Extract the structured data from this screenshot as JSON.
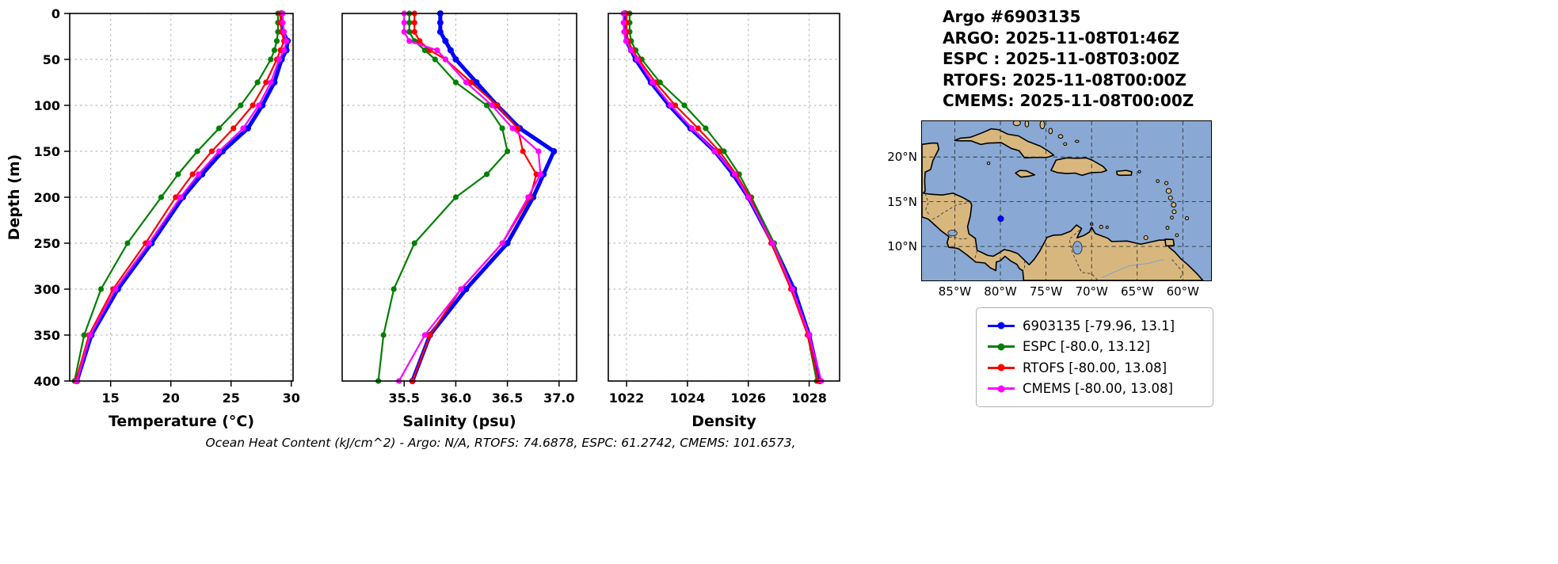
{
  "header": {
    "title": "Argo #6903135",
    "lines": [
      "ARGO: 2025-11-08T01:46Z",
      "ESPC : 2025-11-08T03:00Z",
      "RTOFS: 2025-11-08T00:00Z",
      "CMEMS: 2025-11-08T00:00Z"
    ]
  },
  "caption": "Ocean Heat Content (kJ/cm^2) - Argo: N/A,  RTOFS: 74.6878,  ESPC: 61.2742,  CMEMS: 101.6573,",
  "colors": {
    "argo": "#0000ff",
    "espc": "#008000",
    "rtofs": "#ff0000",
    "cmems": "#ff00ff",
    "grid": "#bbbbbb",
    "ocean": "#89a9d4",
    "land": "#d8b77e"
  },
  "legend": {
    "items": [
      {
        "key": "argo",
        "label": "6903135 [-79.96, 13.1]",
        "color": "#0000ff"
      },
      {
        "key": "espc",
        "label": "ESPC [-80.0, 13.12]",
        "color": "#008000"
      },
      {
        "key": "rtofs",
        "label": "RTOFS [-80.00, 13.08]",
        "color": "#ff0000"
      },
      {
        "key": "cmems",
        "label": "CMEMS [-80.00, 13.08]",
        "color": "#ff00ff"
      }
    ]
  },
  "map": {
    "extent": {
      "lon_min": -88.6,
      "lon_max": -56.9,
      "lat_min": 6.2,
      "lat_max": 24.0
    },
    "xticks": [
      {
        "v": -85,
        "label": "85°W"
      },
      {
        "v": -80,
        "label": "80°W"
      },
      {
        "v": -75,
        "label": "75°W"
      },
      {
        "v": -70,
        "label": "70°W"
      },
      {
        "v": -65,
        "label": "65°W"
      },
      {
        "v": -60,
        "label": "60°W"
      }
    ],
    "yticks": [
      {
        "v": 20,
        "label": "20°N"
      },
      {
        "v": 15,
        "label": "15°N"
      },
      {
        "v": 10,
        "label": "10°N"
      }
    ],
    "float_marker": {
      "lon": -79.96,
      "lat": 13.1
    }
  },
  "chart_data": {
    "type": "line",
    "ylabel": "Depth (m)",
    "ylim": [
      0,
      400
    ],
    "yticks": [
      {
        "v": 0,
        "label": "0"
      },
      {
        "v": 50,
        "label": "50"
      },
      {
        "v": 100,
        "label": "100"
      },
      {
        "v": 150,
        "label": "150"
      },
      {
        "v": 200,
        "label": "200"
      },
      {
        "v": 250,
        "label": "250"
      },
      {
        "v": 300,
        "label": "300"
      },
      {
        "v": 350,
        "label": "350"
      },
      {
        "v": 400,
        "label": "400"
      }
    ],
    "depths": [
      0,
      10,
      20,
      30,
      40,
      50,
      75,
      100,
      125,
      150,
      175,
      200,
      250,
      300,
      350,
      400
    ],
    "draw_order": [
      "argo",
      "espc",
      "rtofs",
      "cmems"
    ],
    "series_meta": [
      {
        "key": "argo",
        "name": "6903135",
        "line_width": 5,
        "marker_radius": 4
      },
      {
        "key": "espc",
        "name": "ESPC",
        "line_width": 2.2,
        "marker_radius": 3.6
      },
      {
        "key": "rtofs",
        "name": "RTOFS",
        "line_width": 2.2,
        "marker_radius": 3.6
      },
      {
        "key": "cmems",
        "name": "CMEMS",
        "line_width": 2.2,
        "marker_radius": 3.6
      }
    ],
    "panels": [
      {
        "xlabel": "Temperature (°C)",
        "xlim": [
          11.6,
          30.15
        ],
        "xticks": [
          {
            "v": 15,
            "label": "15"
          },
          {
            "v": 20,
            "label": "20"
          },
          {
            "v": 25,
            "label": "25"
          },
          {
            "v": 30,
            "label": "30"
          }
        ],
        "series": {
          "argo": [
            29.2,
            29.2,
            29.3,
            29.7,
            29.6,
            29.2,
            28.6,
            27.6,
            26.4,
            24.3,
            22.6,
            21.0,
            18.4,
            15.6,
            13.4,
            12.2
          ],
          "espc": [
            28.9,
            28.9,
            28.9,
            28.8,
            28.6,
            28.3,
            27.2,
            25.8,
            24.0,
            22.2,
            20.6,
            19.2,
            16.4,
            14.2,
            12.8,
            12.0
          ],
          "rtofs": [
            29.1,
            29.1,
            29.2,
            29.4,
            29.1,
            28.8,
            27.9,
            26.8,
            25.2,
            23.4,
            21.8,
            20.4,
            17.9,
            15.2,
            13.2,
            12.1
          ],
          "cmems": [
            29.3,
            29.3,
            29.4,
            29.6,
            29.4,
            29.0,
            28.3,
            27.3,
            26.0,
            24.0,
            22.3,
            20.8,
            18.2,
            15.4,
            13.3,
            12.2
          ]
        }
      },
      {
        "xlabel": "Salinity (psu)",
        "xlim": [
          34.9,
          37.17
        ],
        "xticks": [
          {
            "v": 35.5,
            "label": "35.5"
          },
          {
            "v": 36.0,
            "label": "36.0"
          },
          {
            "v": 36.5,
            "label": "36.5"
          },
          {
            "v": 37.0,
            "label": "37.0"
          }
        ],
        "series": {
          "argo": [
            35.85,
            35.85,
            35.85,
            35.9,
            35.95,
            36.0,
            36.2,
            36.4,
            36.62,
            36.95,
            36.85,
            36.75,
            36.5,
            36.1,
            35.75,
            35.58
          ],
          "espc": [
            35.55,
            35.55,
            35.55,
            35.6,
            35.7,
            35.8,
            36.0,
            36.3,
            36.45,
            36.5,
            36.3,
            36.0,
            35.6,
            35.4,
            35.3,
            35.25
          ],
          "rtofs": [
            35.6,
            35.6,
            35.6,
            35.65,
            35.75,
            35.9,
            36.15,
            36.4,
            36.6,
            36.65,
            36.78,
            36.72,
            36.45,
            36.05,
            35.75,
            35.58
          ],
          "cmems": [
            35.5,
            35.5,
            35.5,
            35.55,
            35.82,
            35.9,
            36.1,
            36.35,
            36.55,
            36.8,
            36.82,
            36.7,
            36.45,
            36.05,
            35.7,
            35.45
          ]
        }
      },
      {
        "xlabel": "Density",
        "xlim": [
          1021.4,
          1029.0
        ],
        "xticks": [
          {
            "v": 1022,
            "label": "1022"
          },
          {
            "v": 1024,
            "label": "1024"
          },
          {
            "v": 1026,
            "label": "1026"
          },
          {
            "v": 1028,
            "label": "1028"
          }
        ],
        "series": {
          "argo": [
            1021.95,
            1021.95,
            1021.97,
            1022.0,
            1022.15,
            1022.3,
            1022.8,
            1023.4,
            1024.1,
            1024.9,
            1025.5,
            1026.0,
            1026.8,
            1027.5,
            1028.0,
            1028.35
          ],
          "espc": [
            1022.1,
            1022.1,
            1022.1,
            1022.15,
            1022.3,
            1022.5,
            1023.1,
            1023.9,
            1024.6,
            1025.2,
            1025.7,
            1026.1,
            1026.85,
            1027.45,
            1027.95,
            1028.25
          ],
          "rtofs": [
            1022.0,
            1022.0,
            1022.0,
            1022.05,
            1022.2,
            1022.4,
            1022.95,
            1023.6,
            1024.35,
            1025.05,
            1025.6,
            1026.05,
            1026.75,
            1027.4,
            1027.95,
            1028.3
          ],
          "cmems": [
            1021.9,
            1021.9,
            1021.92,
            1021.98,
            1022.15,
            1022.35,
            1022.85,
            1023.45,
            1024.15,
            1024.9,
            1025.55,
            1026.0,
            1026.8,
            1027.45,
            1028.0,
            1028.4
          ]
        }
      }
    ]
  }
}
